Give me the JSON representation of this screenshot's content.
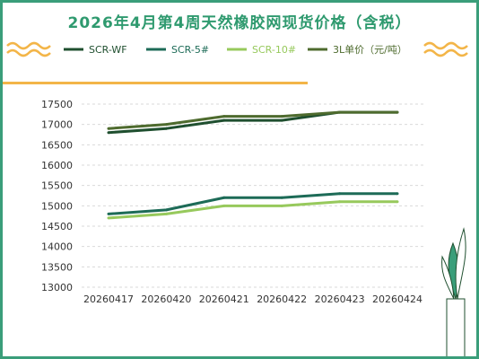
{
  "title": "2026年4月第4周天然橡胶网现货价格（含税）",
  "colors": {
    "border": "#3a9e7a",
    "title": "#2f9a6f",
    "wave": "#f3b548",
    "grid": "#d9d9d9",
    "axis_text": "#333333"
  },
  "chart_data": {
    "type": "line",
    "title": "2026年4月第4周天然橡胶网现货价格（含税）",
    "categories": [
      "20260417",
      "20260420",
      "20260421",
      "20260422",
      "20260423",
      "20260424"
    ],
    "ylim": [
      13000,
      17500
    ],
    "yticks": [
      "17500",
      "17000",
      "16500",
      "16000",
      "15500",
      "15000",
      "14500",
      "14000",
      "13500",
      "13000"
    ],
    "grid": true,
    "legend_position": "top",
    "series": [
      {
        "name": "SCR-WF",
        "color": "#1f4f2f",
        "values": [
          16800,
          16900,
          17100,
          17100,
          17300,
          17300
        ]
      },
      {
        "name": "SCR-5#",
        "color": "#1d6b57",
        "values": [
          14800,
          14900,
          15200,
          15200,
          15300,
          15300
        ]
      },
      {
        "name": "SCR-10#",
        "color": "#97c95c",
        "values": [
          14700,
          14800,
          15000,
          15000,
          15100,
          15100
        ]
      },
      {
        "name": "3L单价（元/吨）",
        "color": "#4e6b2e",
        "values": [
          16900,
          17000,
          17200,
          17200,
          17300,
          17300
        ]
      }
    ]
  }
}
